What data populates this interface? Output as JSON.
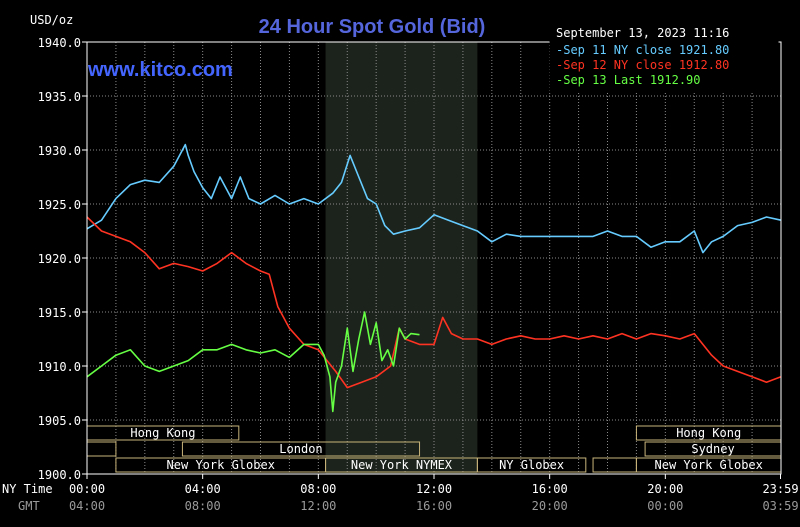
{
  "chart_data": {
    "type": "line",
    "title": "24 Hour Spot Gold (Bid)",
    "ylabel": "USD/oz",
    "watermark": "www.kitco.com",
    "timestamp": "September 13, 2023 11:16",
    "ylim": [
      1900,
      1940
    ],
    "xlim": [
      0,
      24
    ],
    "grid": true,
    "legend_position": "top-right",
    "colors": {
      "background": "#000000",
      "axis": "#ffffff",
      "grid": "#8a8a8a",
      "title": "#5566dd",
      "brand": "#4466ff",
      "shade": "#1c231c",
      "bar_fill": "#c8b47a"
    },
    "yticks": [
      "1900.0",
      "1905.0",
      "1910.0",
      "1915.0",
      "1920.0",
      "1925.0",
      "1930.0",
      "1935.0",
      "1940.0"
    ],
    "ytick_values": [
      1900,
      1905,
      1910,
      1915,
      1920,
      1925,
      1930,
      1935,
      1940
    ],
    "xticks_ny_label": "NY Time",
    "xticks_gmt_label": "GMT",
    "xtick_values": [
      0,
      4,
      8,
      12,
      16,
      20,
      23.983
    ],
    "xticks_ny": [
      "00:00",
      "04:00",
      "08:00",
      "12:00",
      "16:00",
      "20:00",
      "23:59"
    ],
    "xticks_gmt": [
      "04:00",
      "08:00",
      "12:00",
      "16:00",
      "20:00",
      "00:00",
      "03:59"
    ],
    "shaded_region": [
      8.25,
      13.5
    ],
    "sessions": [
      {
        "label": "Hong Kong",
        "start": 0,
        "end": 5.25,
        "row": 0
      },
      {
        "label": "",
        "start": 0,
        "end": 1,
        "row": 1
      },
      {
        "label": "London",
        "start": 3.3,
        "end": 11.5,
        "row": 1
      },
      {
        "label": "New York Globex",
        "start": 1,
        "end": 8.25,
        "row": 2
      },
      {
        "label": "New York NYMEX",
        "start": 8.25,
        "end": 13.5,
        "row": 2
      },
      {
        "label": "NY Globex",
        "start": 13.5,
        "end": 17.25,
        "row": 2
      },
      {
        "label": "",
        "start": 17.5,
        "end": 19,
        "row": 2
      },
      {
        "label": "Hong Kong",
        "start": 19,
        "end": 24,
        "row": 0
      },
      {
        "label": "Sydney",
        "start": 19.3,
        "end": 24,
        "row": 1
      },
      {
        "label": "New York Globex",
        "start": 19,
        "end": 24,
        "row": 2
      }
    ],
    "series": [
      {
        "name": "Sep 11 NY close 1921.80",
        "color": "#66ccff",
        "x": [
          0,
          0.5,
          1,
          1.5,
          2,
          2.5,
          3,
          3.4,
          3.5,
          3.7,
          4,
          4.3,
          4.6,
          5,
          5.3,
          5.6,
          6,
          6.5,
          7,
          7.5,
          8,
          8.5,
          8.8,
          9.1,
          9.4,
          9.7,
          10,
          10.3,
          10.6,
          11,
          11.5,
          12,
          12.5,
          13,
          13.5,
          14,
          14.5,
          15,
          15.5,
          16,
          16.5,
          17,
          17.5,
          18,
          18.5,
          19,
          19.5,
          20,
          20.5,
          21,
          21.3,
          21.6,
          22,
          22.5,
          23,
          23.5,
          24
        ],
        "values": [
          1922.7,
          1923.5,
          1925.5,
          1926.8,
          1927.2,
          1927.0,
          1928.5,
          1930.5,
          1929.5,
          1928.0,
          1926.5,
          1925.5,
          1927.5,
          1925.5,
          1927.5,
          1925.5,
          1925.0,
          1925.8,
          1925.0,
          1925.5,
          1925.0,
          1926.0,
          1927.0,
          1929.5,
          1927.5,
          1925.5,
          1925.0,
          1923.0,
          1922.2,
          1922.5,
          1922.8,
          1924.0,
          1923.5,
          1923.0,
          1922.5,
          1921.5,
          1922.2,
          1922.0,
          1922.0,
          1922.0,
          1922.0,
          1922.0,
          1922.0,
          1922.5,
          1922.0,
          1922.0,
          1921.0,
          1921.5,
          1921.5,
          1922.5,
          1920.5,
          1921.5,
          1922.0,
          1923.0,
          1923.3,
          1923.8,
          1923.5
        ]
      },
      {
        "name": "Sep 12 NY close 1912.80",
        "color": "#ff3322",
        "x": [
          0,
          0.5,
          1,
          1.5,
          2,
          2.5,
          3,
          3.5,
          4,
          4.5,
          5,
          5.5,
          6,
          6.3,
          6.6,
          7,
          7.5,
          8,
          8.3,
          8.6,
          9,
          9.5,
          10,
          10.5,
          10.8,
          11,
          11.5,
          12,
          12.3,
          12.6,
          13,
          13.5,
          14,
          14.5,
          15,
          15.5,
          16,
          16.5,
          17,
          17.5,
          18,
          18.5,
          19,
          19.5,
          20,
          20.5,
          21,
          21.3,
          21.6,
          22,
          22.5,
          23,
          23.5,
          24
        ],
        "values": [
          1923.8,
          1922.5,
          1922.0,
          1921.5,
          1920.5,
          1919.0,
          1919.5,
          1919.2,
          1918.8,
          1919.5,
          1920.5,
          1919.5,
          1918.8,
          1918.5,
          1915.5,
          1913.5,
          1912.0,
          1911.5,
          1910.5,
          1909.5,
          1908.0,
          1908.5,
          1909.0,
          1910.0,
          1913.5,
          1912.5,
          1912.0,
          1912.0,
          1914.5,
          1913.0,
          1912.5,
          1912.5,
          1912.0,
          1912.5,
          1912.8,
          1912.5,
          1912.5,
          1912.8,
          1912.5,
          1912.8,
          1912.5,
          1913.0,
          1912.5,
          1913.0,
          1912.8,
          1912.5,
          1913.0,
          1912.0,
          1911.0,
          1910.0,
          1909.5,
          1909.0,
          1908.5,
          1909.0
        ]
      },
      {
        "name": "Sep 13 Last 1912.90",
        "color": "#66ff44",
        "x": [
          0,
          0.5,
          1,
          1.5,
          2,
          2.5,
          3,
          3.5,
          4,
          4.5,
          5,
          5.5,
          6,
          6.5,
          7,
          7.5,
          8,
          8.2,
          8.4,
          8.5,
          8.6,
          8.8,
          9,
          9.2,
          9.4,
          9.6,
          9.8,
          10,
          10.2,
          10.4,
          10.6,
          10.8,
          11,
          11.2,
          11.5
        ],
        "values": [
          1909.0,
          1910.0,
          1911.0,
          1911.5,
          1910.0,
          1909.5,
          1910.0,
          1910.5,
          1911.5,
          1911.5,
          1912.0,
          1911.5,
          1911.2,
          1911.5,
          1910.8,
          1912.0,
          1912.0,
          1911.0,
          1909.0,
          1905.8,
          1908.5,
          1910.0,
          1913.5,
          1909.5,
          1912.5,
          1915.0,
          1912.0,
          1914.0,
          1910.5,
          1911.5,
          1910.0,
          1913.5,
          1912.5,
          1913.0,
          1912.9
        ]
      }
    ]
  }
}
